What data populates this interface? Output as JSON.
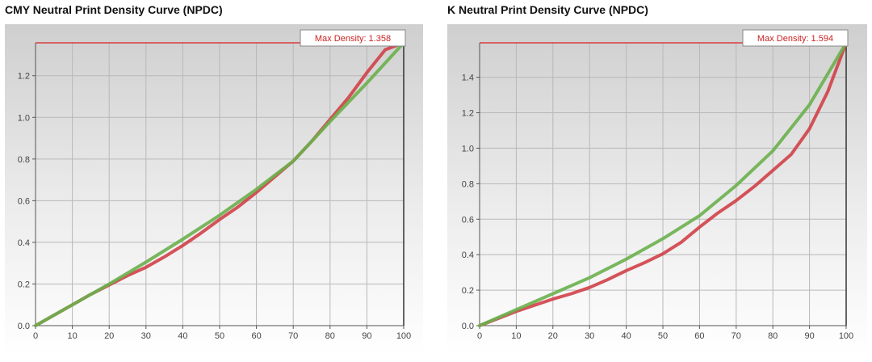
{
  "chart_data": [
    {
      "type": "line",
      "title": "CMY Neutral Print Density Curve (NPDC)",
      "xlim": [
        0,
        100
      ],
      "ylim": [
        0,
        1.358
      ],
      "xticks": [
        "0",
        "10",
        "20",
        "30",
        "40",
        "50",
        "60",
        "70",
        "80",
        "90",
        "100"
      ],
      "yticks": [
        "0.0",
        "0.2",
        "0.4",
        "0.6",
        "0.8",
        "1.0",
        "1.2"
      ],
      "ytick_values": [
        0,
        0.2,
        0.4,
        0.6,
        0.8,
        1.0,
        1.2
      ],
      "grid": true,
      "max_line": {
        "value": 1.358,
        "label": "Max Density: 1.358",
        "color": "#d82020"
      },
      "series": [
        {
          "color": "#d04048",
          "x": [
            0,
            5,
            10,
            15,
            20,
            25,
            30,
            35,
            40,
            45,
            50,
            55,
            60,
            65,
            70,
            75,
            80,
            85,
            90,
            95,
            100
          ],
          "y": [
            0,
            0.05,
            0.1,
            0.15,
            0.195,
            0.24,
            0.28,
            0.33,
            0.385,
            0.445,
            0.51,
            0.57,
            0.64,
            0.715,
            0.79,
            0.885,
            0.99,
            1.095,
            1.215,
            1.325,
            1.358
          ]
        },
        {
          "color": "#6ab04c",
          "x": [
            0,
            10,
            20,
            30,
            40,
            50,
            60,
            70,
            80,
            90,
            100
          ],
          "y": [
            0,
            0.1,
            0.2,
            0.305,
            0.415,
            0.53,
            0.655,
            0.79,
            0.98,
            1.165,
            1.358
          ]
        }
      ]
    },
    {
      "type": "line",
      "title": "K Neutral Print Density Curve (NPDC)",
      "xlim": [
        0,
        100
      ],
      "ylim": [
        0,
        1.594
      ],
      "xticks": [
        "0",
        "10",
        "20",
        "30",
        "40",
        "50",
        "60",
        "70",
        "80",
        "90",
        "100"
      ],
      "yticks": [
        "0.0",
        "0.2",
        "0.4",
        "0.6",
        "0.8",
        "1.0",
        "1.2",
        "1.4"
      ],
      "ytick_values": [
        0,
        0.2,
        0.4,
        0.6,
        0.8,
        1.0,
        1.2,
        1.4
      ],
      "grid": true,
      "max_line": {
        "value": 1.594,
        "label": "Max Density: 1.594",
        "color": "#d82020"
      },
      "series": [
        {
          "color": "#d04048",
          "x": [
            0,
            5,
            10,
            15,
            20,
            25,
            30,
            35,
            40,
            45,
            50,
            55,
            60,
            65,
            70,
            75,
            80,
            85,
            90,
            95,
            100
          ],
          "y": [
            0,
            0.04,
            0.08,
            0.115,
            0.15,
            0.18,
            0.215,
            0.26,
            0.31,
            0.355,
            0.405,
            0.47,
            0.555,
            0.635,
            0.705,
            0.785,
            0.875,
            0.965,
            1.11,
            1.32,
            1.594
          ]
        },
        {
          "color": "#6ab04c",
          "x": [
            0,
            10,
            20,
            30,
            40,
            50,
            60,
            70,
            80,
            90,
            100
          ],
          "y": [
            0,
            0.09,
            0.18,
            0.27,
            0.375,
            0.49,
            0.62,
            0.79,
            0.985,
            1.245,
            1.594
          ]
        }
      ]
    }
  ]
}
